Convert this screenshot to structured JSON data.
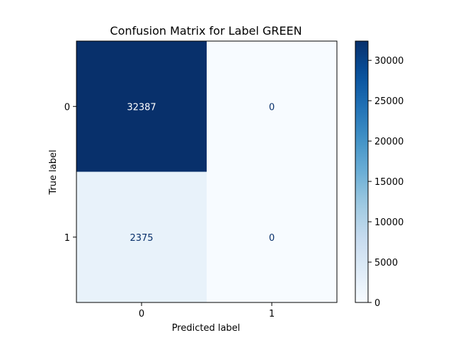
{
  "chart_data": {
    "type": "heatmap",
    "title": "Confusion Matrix for Label GREEN",
    "xlabel": "Predicted label",
    "ylabel": "True label",
    "x_categories": [
      "0",
      "1"
    ],
    "y_categories": [
      "0",
      "1"
    ],
    "values": [
      [
        32387,
        0
      ],
      [
        2375,
        0
      ]
    ],
    "colormap": "Blues",
    "colorbar": {
      "range": [
        0,
        32387
      ],
      "ticks": [
        0,
        5000,
        10000,
        15000,
        20000,
        25000,
        30000
      ],
      "tick_labels": [
        "0",
        "5000",
        "10000",
        "15000",
        "20000",
        "25000",
        "30000"
      ]
    },
    "text_colors": {
      "on_dark": "#ffffff",
      "on_light": "#08306b"
    },
    "grid": false
  }
}
